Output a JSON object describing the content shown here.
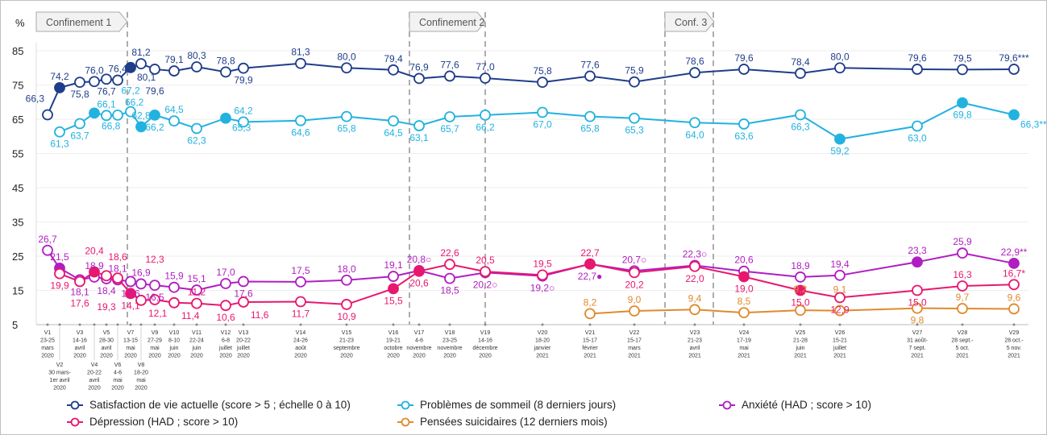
{
  "chart_data": {
    "type": "line",
    "ylabel": "%",
    "ylim": [
      5,
      85
    ],
    "yticks": [
      5,
      15,
      25,
      35,
      45,
      55,
      65,
      75,
      85
    ],
    "grid": true,
    "legend_position": "bottom",
    "categories": [
      [
        "V1",
        "23-25",
        "mars",
        "2020"
      ],
      [
        "V2",
        "30 mars-",
        "1er avril",
        "2020"
      ],
      [
        "V3",
        "14-16",
        "avril",
        "2020"
      ],
      [
        "V4",
        "20-22",
        "avril",
        "2020"
      ],
      [
        "V5",
        "28-30",
        "avril",
        "2020"
      ],
      [
        "V6",
        "4-6",
        "mai",
        "2020"
      ],
      [
        "V7",
        "13-15",
        "mai",
        "2020"
      ],
      [
        "V8",
        "18-20",
        "mai",
        "2020"
      ],
      [
        "V9",
        "27-29",
        "mai",
        "2020"
      ],
      [
        "V10",
        "8-10",
        "juin",
        "2020"
      ],
      [
        "V11",
        "22-24",
        "juin",
        "2020"
      ],
      [
        "V12",
        "6-8",
        "juillet",
        "2020"
      ],
      [
        "V13",
        "20-22",
        "juillet",
        "2020"
      ],
      [
        "V14",
        "24-26",
        "août",
        "2020"
      ],
      [
        "V15",
        "21-23",
        "septembre",
        "2020"
      ],
      [
        "V16",
        "19-21",
        "octobre",
        "2020"
      ],
      [
        "V17",
        "4-6",
        "novembre",
        "2020"
      ],
      [
        "V18",
        "23-25",
        "novembre",
        "2020"
      ],
      [
        "V19",
        "14-16",
        "décembre",
        "2020"
      ],
      [
        "V20",
        "18-20",
        "janvier",
        "2021"
      ],
      [
        "V21",
        "15-17",
        "février",
        "2021"
      ],
      [
        "V22",
        "15-17",
        "mars",
        "2021"
      ],
      [
        "V23",
        "21-23",
        "avril",
        "2021"
      ],
      [
        "V24",
        "17-19",
        "mai",
        "2021"
      ],
      [
        "V25",
        "21-28",
        "juin",
        "2021"
      ],
      [
        "V26",
        "15-21",
        "juillet",
        "2021"
      ],
      [
        "V27",
        "31 août-",
        "7 sept.",
        "2021"
      ],
      [
        "V28",
        "28 sept.-",
        "5 oct.",
        "2021"
      ],
      [
        "V29",
        "28 oct.-",
        "5 nov.",
        "2021"
      ]
    ],
    "periods": [
      {
        "label": "Confinement 1",
        "from_wave": 7,
        "to_wave": 7
      },
      {
        "label": "Confinement 2",
        "from_wave": 17,
        "to_wave": 19
      },
      {
        "label": "Conf. 3",
        "from_wave": 23,
        "to_wave": 24
      }
    ],
    "series": [
      {
        "name": "Satisfaction de vie actuelle (score > 5 ; échelle 0 à 10)",
        "color": "#1f3d8a",
        "values": [
          66.3,
          74.2,
          75.8,
          76.0,
          76.7,
          76.4,
          80.1,
          81.2,
          79.6,
          79.1,
          80.3,
          78.8,
          79.9,
          81.3,
          80.0,
          79.4,
          76.9,
          77.6,
          77.0,
          75.8,
          77.6,
          75.9,
          78.6,
          79.6,
          78.4,
          80.0,
          79.6,
          79.5,
          79.6
        ],
        "labels": [
          "66,3",
          "74,2",
          "75,8",
          "76,0",
          "76,7",
          "76,4",
          "80,1",
          "81,2",
          "79,6",
          "79,1",
          "80,3",
          "78,8",
          "79,9",
          "81,3",
          "80,0",
          "79,4",
          "76,9",
          "77,6",
          "77,0",
          "75,8",
          "77,6",
          "75,9",
          "78,6",
          "79,6",
          "78,4",
          "80,0",
          "79,6",
          "79,5",
          "79,6***"
        ],
        "filled": [
          2,
          7
        ]
      },
      {
        "name": "Problèmes de sommeil (8 derniers jours)",
        "color": "#22b2e0",
        "values": [
          null,
          61.3,
          63.7,
          66.8,
          66.1,
          66.2,
          67.2,
          62.8,
          66.2,
          64.5,
          62.3,
          65.3,
          64.2,
          64.6,
          65.8,
          64.5,
          63.1,
          65.7,
          66.2,
          67.0,
          65.8,
          65.3,
          64.0,
          63.6,
          66.3,
          59.2,
          63.0,
          69.8,
          66.3
        ],
        "labels": [
          "",
          "61,3",
          "63,7",
          "66,8",
          "66,1",
          "66,2",
          "67,2",
          "62,8",
          "66,2",
          "64,5",
          "62,3",
          "65,3",
          "64,2",
          "64,6",
          "65,8",
          "64,5",
          "63,1",
          "65,7",
          "66,2",
          "67,0",
          "65,8",
          "65,3",
          "64,0",
          "63,6",
          "66,3",
          "59,2",
          "63,0",
          "69,8",
          "66,3**"
        ],
        "filled": [
          4,
          8,
          9,
          12,
          26,
          28,
          29
        ]
      },
      {
        "name": "Anxiété (HAD ; score > 10)",
        "color": "#b01ec2",
        "values": [
          26.7,
          21.5,
          18.1,
          18.9,
          18.4,
          18.1,
          17.6,
          16.9,
          16.5,
          15.9,
          15.1,
          17.0,
          17.6,
          17.5,
          18.0,
          19.1,
          20.8,
          18.5,
          20.2,
          19.2,
          22.7,
          20.7,
          22.3,
          20.6,
          18.9,
          19.4,
          23.3,
          25.9,
          22.9
        ],
        "labels": [
          "26,7",
          "21,5",
          "18,1",
          "18,9",
          "18,4",
          "18,1",
          "17,6",
          "16,9",
          "16,5",
          "15,9",
          "15,1",
          "17,0",
          "17,6",
          "17,5",
          "18,0",
          "19,1",
          "20,8○",
          "18,5",
          "20,2○",
          "19,2○",
          "22,7●",
          "20,7○",
          "22,3○",
          "20,6",
          "18,9",
          "19,4",
          "23,3",
          "25,9",
          "22,9**"
        ],
        "filled": [
          2,
          27,
          29
        ]
      },
      {
        "name": "Dépression (HAD ; score > 10)",
        "color": "#e8176e",
        "values": [
          null,
          19.9,
          17.6,
          20.4,
          19.3,
          18.6,
          14.1,
          12.1,
          12.3,
          11.4,
          11.2,
          10.6,
          11.6,
          11.7,
          10.9,
          15.5,
          20.6,
          22.6,
          20.5,
          19.5,
          22.7,
          20.2,
          22.0,
          19.0,
          15.0,
          12.9,
          15.0,
          16.3,
          16.7
        ],
        "labels": [
          "",
          "19,9",
          "17,6",
          "20,4",
          "19,3",
          "18,6",
          "14,1",
          "12,1",
          "12,3",
          "11,4",
          "11,2",
          "10,6",
          "11,6",
          "11,7",
          "10,9",
          "15,5",
          "20,6",
          "22,6",
          "20,5",
          "19,5",
          "22,7",
          "20,2",
          "22,0",
          "19,0",
          "15,0",
          "12,9",
          "15,0",
          "16,3",
          "16,7*"
        ],
        "filled": [
          4,
          7,
          16,
          17,
          21,
          24,
          25
        ]
      },
      {
        "name": "Pensées suicidaires (12 derniers mois)",
        "color": "#e08a2c",
        "values": [
          null,
          null,
          null,
          null,
          null,
          null,
          null,
          null,
          null,
          null,
          null,
          null,
          null,
          null,
          null,
          null,
          null,
          null,
          null,
          null,
          8.2,
          9.0,
          9.4,
          8.5,
          9.2,
          9.1,
          9.8,
          9.7,
          9.6
        ],
        "labels": [
          "",
          "",
          "",
          "",
          "",
          "",
          "",
          "",
          "",
          "",
          "",
          "",
          "",
          "",
          "",
          "",
          "",
          "",
          "",
          "",
          "8,2",
          "9,0",
          "9,4",
          "8,5",
          "9,2",
          "9,1",
          "9,8",
          "9,7",
          "9,6"
        ],
        "filled": []
      }
    ]
  }
}
